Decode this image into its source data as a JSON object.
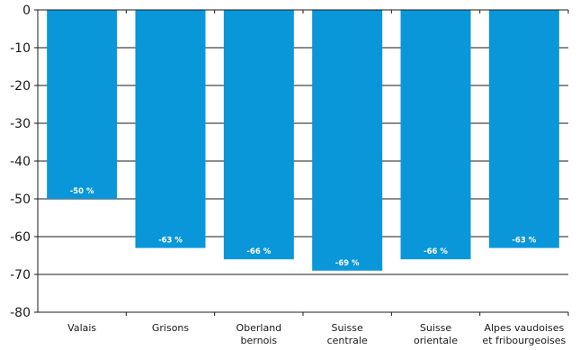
{
  "colors": {
    "bar": "#0a97d9",
    "grid": "#1a1a1a",
    "axis": "#1a1a1a"
  },
  "chart_data": {
    "type": "bar",
    "categories": [
      [
        "Valais"
      ],
      [
        "Grisons"
      ],
      [
        "Oberland",
        "bernois"
      ],
      [
        "Suisse",
        "centrale"
      ],
      [
        "Suisse",
        "orientale"
      ],
      [
        "Alpes vaudoises",
        "et fribourgeoises"
      ]
    ],
    "values": [
      -50,
      -63,
      -66,
      -69,
      -66,
      -63
    ],
    "data_labels": [
      "-50 %",
      "-63 %",
      "-66 %",
      "-69 %",
      "-66 %",
      "-63 %"
    ],
    "yticks": [
      0,
      -10,
      -20,
      -30,
      -40,
      -50,
      -60,
      -70,
      -80
    ],
    "ylim": [
      -80,
      0
    ],
    "grid": true
  }
}
